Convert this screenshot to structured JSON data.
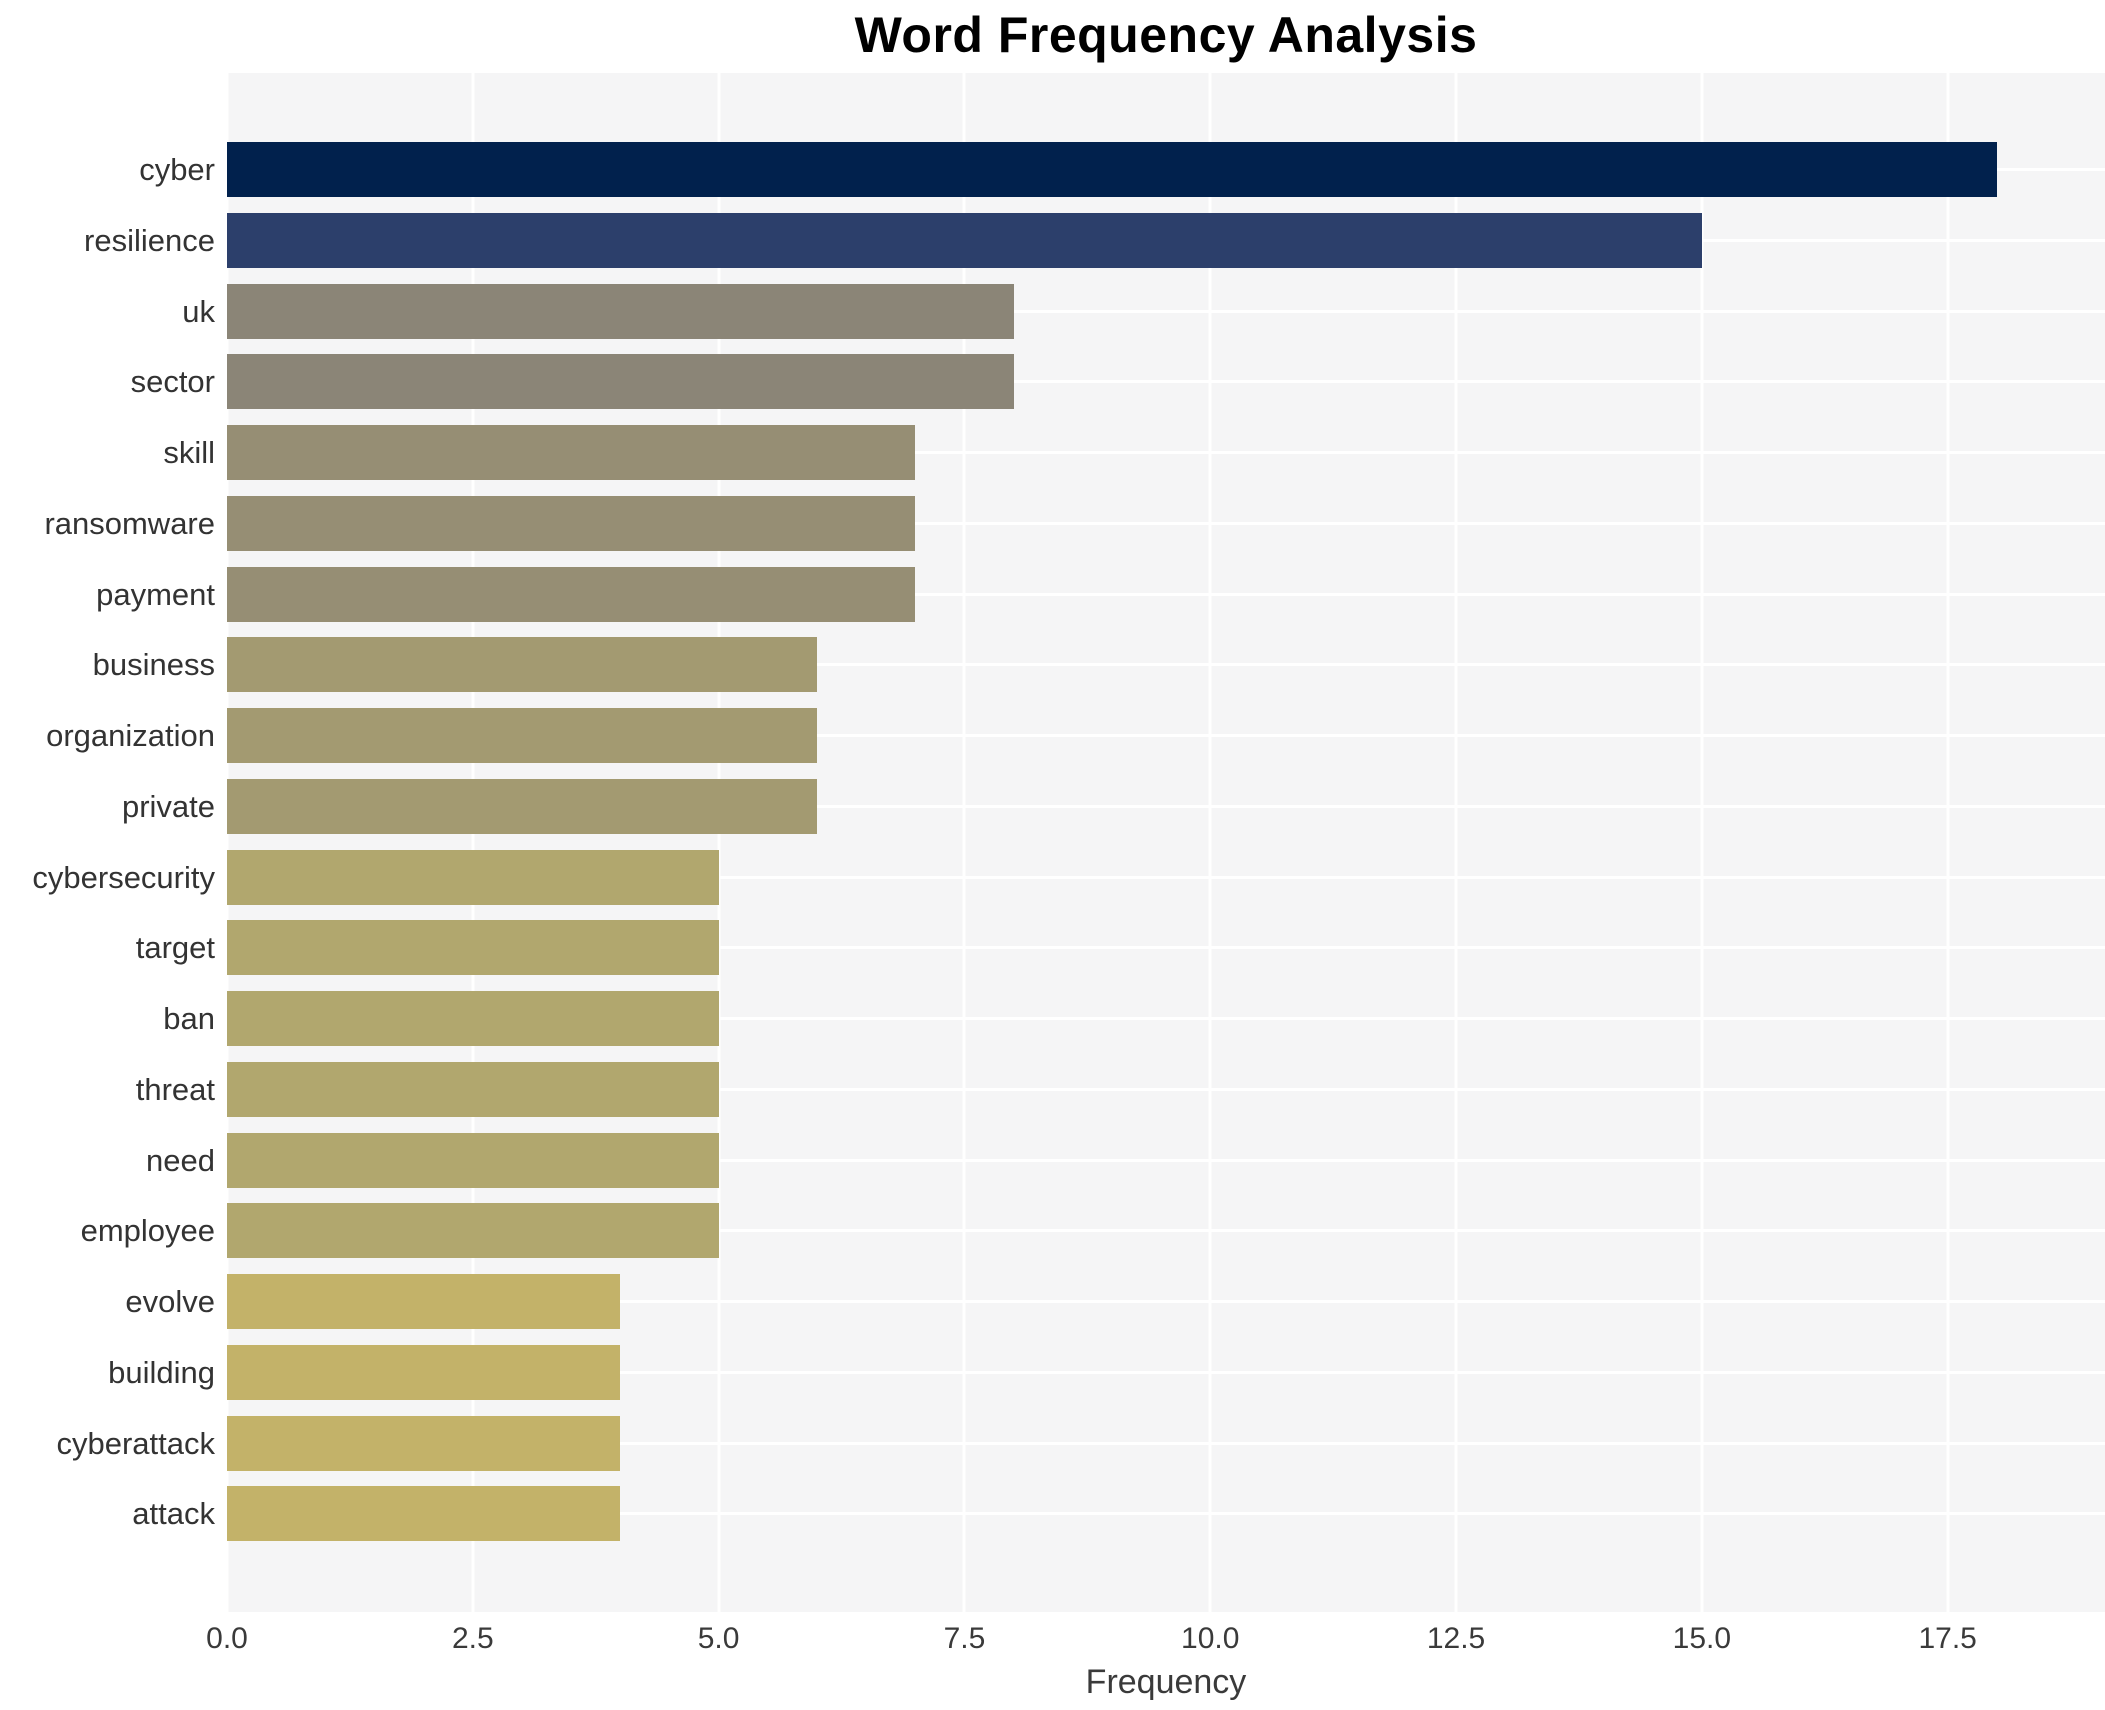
{
  "title": "Word Frequency Analysis",
  "chart_data": {
    "type": "bar",
    "orientation": "horizontal",
    "title": "Word Frequency Analysis",
    "xlabel": "Frequency",
    "ylabel": "",
    "categories": [
      "cyber",
      "resilience",
      "uk",
      "sector",
      "skill",
      "ransomware",
      "payment",
      "business",
      "organization",
      "private",
      "cybersecurity",
      "target",
      "ban",
      "threat",
      "need",
      "employee",
      "evolve",
      "building",
      "cyberattack",
      "attack"
    ],
    "values": [
      18,
      15,
      8,
      8,
      7,
      7,
      7,
      6,
      6,
      6,
      5,
      5,
      5,
      5,
      5,
      5,
      4,
      4,
      4,
      4
    ],
    "bar_colors": [
      "#01214d",
      "#2c3f6b",
      "#8b8577",
      "#8b8577",
      "#968e74",
      "#968e74",
      "#968e74",
      "#a39a71",
      "#a39a71",
      "#a39a71",
      "#b1a76e",
      "#b1a76e",
      "#b1a76e",
      "#b1a76e",
      "#b1a76e",
      "#b1a76e",
      "#c3b269",
      "#c3b269",
      "#c3b269",
      "#c3b269"
    ],
    "xtick_labels": [
      "0.0",
      "2.5",
      "5.0",
      "7.5",
      "10.0",
      "12.5",
      "15.0",
      "17.5"
    ],
    "xtick_values": [
      0,
      2.5,
      5,
      7.5,
      10,
      12.5,
      15,
      17.5
    ],
    "xlim": [
      0,
      19.1
    ],
    "grid": true,
    "legend": false,
    "plot_background": "#f5f5f6",
    "gridline_color": "#ffffff"
  }
}
